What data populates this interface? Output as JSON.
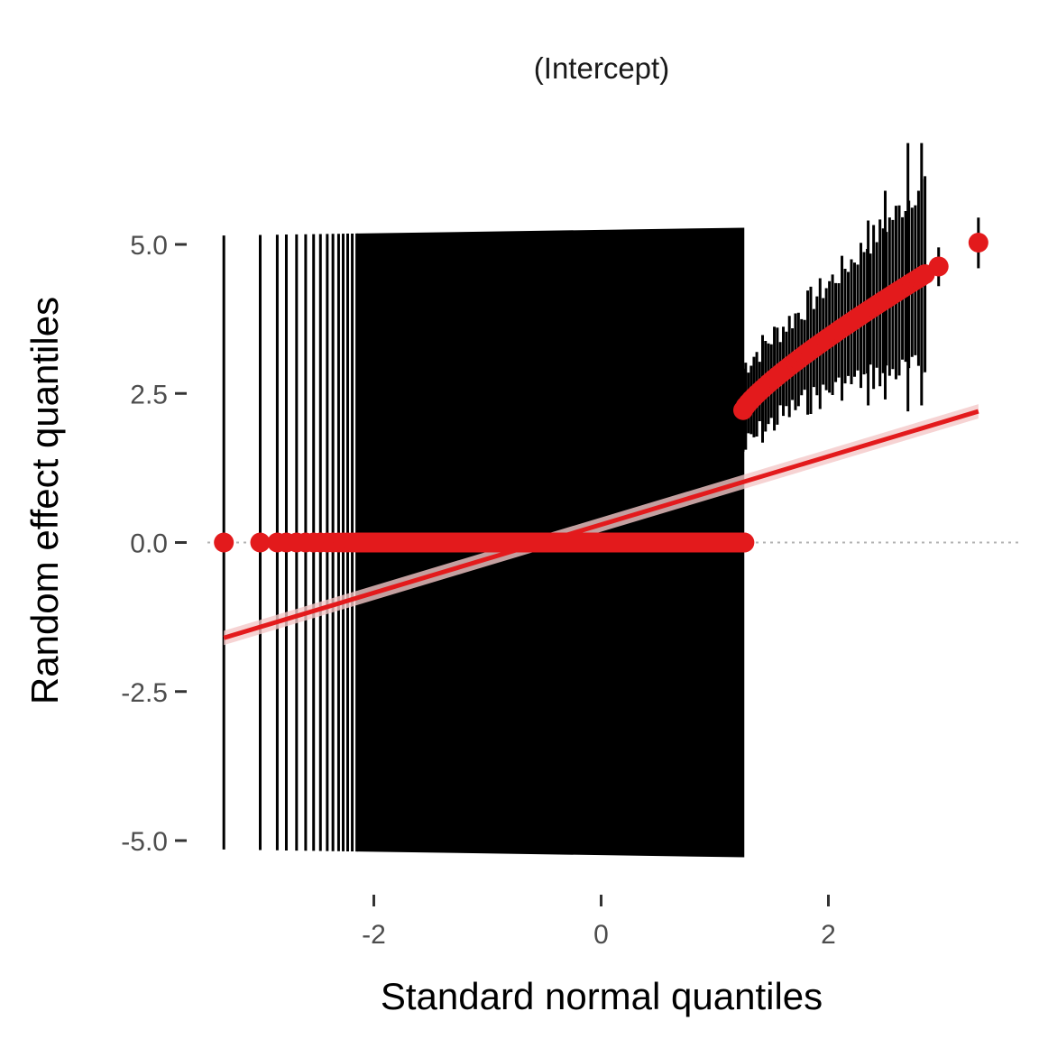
{
  "chart_data": {
    "type": "scatter",
    "title": "(Intercept)",
    "xlabel": "Standard normal quantiles",
    "ylabel": "Random effect quantiles",
    "xlim": [
      -3.4,
      3.6
    ],
    "ylim": [
      -5.5,
      7.0
    ],
    "x_ticks": [
      {
        "value": -2,
        "label": "-2"
      },
      {
        "value": 0,
        "label": "0"
      },
      {
        "value": 2,
        "label": "2"
      }
    ],
    "y_ticks": [
      {
        "value": 5.0,
        "label": "5.0"
      },
      {
        "value": 2.5,
        "label": "2.5"
      },
      {
        "value": 0.0,
        "label": "0.0"
      },
      {
        "value": -2.5,
        "label": "-2.5"
      },
      {
        "value": -5.0,
        "label": "-5.0"
      }
    ],
    "grid": false,
    "reference_hline": {
      "y": 0,
      "style": "dotted",
      "color": "#b3b3b3"
    },
    "colors": {
      "points": "#e31a1c",
      "fit_line": "#e31a1c",
      "fit_band": "#f4c8c8",
      "error_bars": "#000000"
    },
    "zero_group": {
      "x_min": -3.32,
      "x_max": 1.26,
      "y": 0.0,
      "ci_low_at_min": -5.15,
      "ci_low_at_max": -5.28,
      "ci_high_at_min": 5.15,
      "ci_high_at_max": 5.28,
      "distinct_points": [
        -3.32,
        -3.0,
        -2.85,
        -2.77,
        -2.68,
        -2.6,
        -2.53,
        -2.47,
        -2.41,
        -2.36,
        -2.31,
        -2.27,
        -2.23,
        -2.19,
        -2.15
      ]
    },
    "positive_group": {
      "x_min": 1.25,
      "x_max": 2.85,
      "y_min": 2.22,
      "y_max": 4.5
    },
    "series": [
      {
        "values": [
          {
            "x": 2.97,
            "y": 4.63,
            "lo": 4.3,
            "hi": 4.95
          },
          {
            "x": 3.32,
            "y": 5.03,
            "lo": 4.6,
            "hi": 5.45
          }
        ]
      }
    ],
    "fit_line": {
      "x0": -3.32,
      "y0": -1.6,
      "x1": 3.32,
      "y1": 2.2
    }
  }
}
